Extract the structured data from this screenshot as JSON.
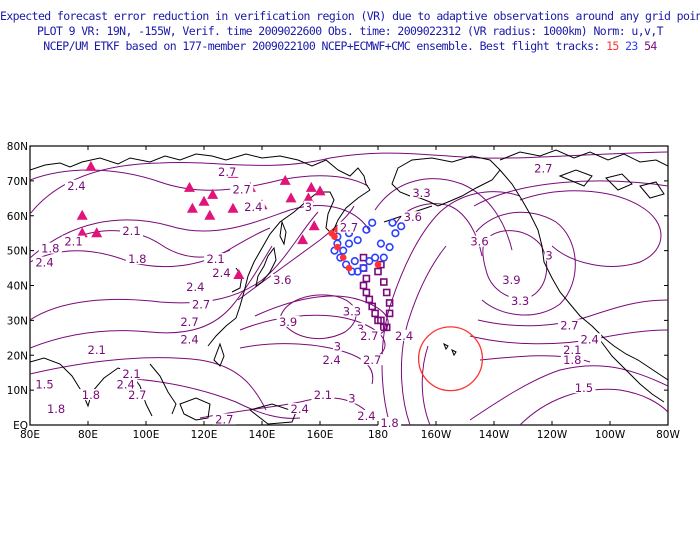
{
  "header": {
    "line1": "Expected forecast error reduction in verification region (VR) due to adaptive observations around any grid point.",
    "line2": "PLOT 9 VR: 19N, -155W, Verif. time 2009022600 Obs. time: 2009022312 (VR radius: 1000km) Norm: u,v,T",
    "line3": "NCEP/UM ETKF based on 177-member 2009022100 NCEP+ECMWF+CMC ensemble. Best flight tracks: ",
    "track_red": "15",
    "track_blue": "23",
    "track_purple": "54"
  },
  "colors": {
    "header_text": "#1a1aa8",
    "contour": "#7a0a7a",
    "coast": "#000000",
    "track_red": "#ff3333",
    "track_blue": "#2a40ff",
    "track_purple": "#7a0a7a",
    "verification_circle": "#ff3333",
    "marker": "#e0147a"
  },
  "axes": {
    "x_ticks": [
      "80E",
      "80E",
      "100E",
      "120E",
      "140E",
      "160E",
      "180",
      "160W",
      "140W",
      "120W",
      "100W",
      "80W"
    ],
    "y_ticks": [
      "EQ",
      "10N",
      "20N",
      "30N",
      "40N",
      "50N",
      "60N",
      "70N",
      "80N"
    ]
  },
  "contour_labels": [
    {
      "text": "2.7",
      "lon": 237,
      "lat": 73
    },
    {
      "text": "2.4",
      "lon": 76,
      "lat": 68
    },
    {
      "text": "2.7",
      "lon": 128,
      "lat": 72
    },
    {
      "text": "2.7",
      "lon": 133,
      "lat": 67
    },
    {
      "text": "2.4",
      "lon": 137,
      "lat": 62
    },
    {
      "text": "3",
      "lon": 156,
      "lat": 62
    },
    {
      "text": "2.1",
      "lon": 95,
      "lat": 55
    },
    {
      "text": "1.8",
      "lon": 67,
      "lat": 50
    },
    {
      "text": "2.1",
      "lon": 75,
      "lat": 52
    },
    {
      "text": "2.4",
      "lon": 65,
      "lat": 46
    },
    {
      "text": "1.8",
      "lon": 97,
      "lat": 47
    },
    {
      "text": "2.1",
      "lon": 124,
      "lat": 47
    },
    {
      "text": "2.4",
      "lon": 126,
      "lat": 43
    },
    {
      "text": "2.7",
      "lon": 170,
      "lat": 56
    },
    {
      "text": "3.3",
      "lon": 195,
      "lat": 66
    },
    {
      "text": "3.6",
      "lon": 192,
      "lat": 59
    },
    {
      "text": "3.6",
      "lon": 215,
      "lat": 52
    },
    {
      "text": "3",
      "lon": 239,
      "lat": 48
    },
    {
      "text": "3.9",
      "lon": 226,
      "lat": 41
    },
    {
      "text": "3.3",
      "lon": 229,
      "lat": 35
    },
    {
      "text": "3.6",
      "lon": 147,
      "lat": 41
    },
    {
      "text": "2.4",
      "lon": 117,
      "lat": 39
    },
    {
      "text": "2.7",
      "lon": 119,
      "lat": 34
    },
    {
      "text": "2.7",
      "lon": 115,
      "lat": 29
    },
    {
      "text": "3.9",
      "lon": 149,
      "lat": 29
    },
    {
      "text": "3.3",
      "lon": 171,
      "lat": 32
    },
    {
      "text": "3",
      "lon": 174,
      "lat": 27
    },
    {
      "text": "2.7",
      "lon": 177,
      "lat": 25
    },
    {
      "text": "2.4",
      "lon": 189,
      "lat": 25
    },
    {
      "text": "2.7",
      "lon": 246,
      "lat": 28
    },
    {
      "text": "2.4",
      "lon": 253,
      "lat": 24
    },
    {
      "text": "2.1",
      "lon": 247,
      "lat": 21
    },
    {
      "text": "1.8",
      "lon": 247,
      "lat": 18
    },
    {
      "text": "2.1",
      "lon": 83,
      "lat": 21
    },
    {
      "text": "2.4",
      "lon": 115,
      "lat": 24
    },
    {
      "text": "3",
      "lon": 166,
      "lat": 22
    },
    {
      "text": "2.4",
      "lon": 164,
      "lat": 18
    },
    {
      "text": "2.7",
      "lon": 178,
      "lat": 18
    },
    {
      "text": "1.5",
      "lon": 65,
      "lat": 11
    },
    {
      "text": "2.1",
      "lon": 95,
      "lat": 14
    },
    {
      "text": "2.4",
      "lon": 93,
      "lat": 11
    },
    {
      "text": "2.7",
      "lon": 97,
      "lat": 8
    },
    {
      "text": "1.8",
      "lon": 81,
      "lat": 8
    },
    {
      "text": "1.8",
      "lon": 69,
      "lat": 4
    },
    {
      "text": "2.1",
      "lon": 161,
      "lat": 8
    },
    {
      "text": "2.4",
      "lon": 153,
      "lat": 4
    },
    {
      "text": "2.7",
      "lon": 127,
      "lat": 1
    },
    {
      "text": "3",
      "lon": 171,
      "lat": 7
    },
    {
      "text": "2.4",
      "lon": 176,
      "lat": 2
    },
    {
      "text": "1.8",
      "lon": 184,
      "lat": 0
    },
    {
      "text": "1.5",
      "lon": 251,
      "lat": 10
    }
  ],
  "triangles": [
    [
      81,
      74
    ],
    [
      78,
      60
    ],
    [
      78,
      55
    ],
    [
      83,
      55
    ],
    [
      115,
      68
    ],
    [
      123,
      66
    ],
    [
      130,
      72
    ],
    [
      136,
      68
    ],
    [
      148,
      70
    ],
    [
      157,
      68
    ],
    [
      160,
      67
    ],
    [
      150,
      65
    ],
    [
      156,
      65
    ],
    [
      120,
      64
    ],
    [
      140,
      63
    ],
    [
      130,
      62
    ],
    [
      116,
      62
    ],
    [
      122,
      60
    ],
    [
      158,
      57
    ],
    [
      132,
      43
    ],
    [
      154,
      53
    ]
  ],
  "track_red_points": [
    [
      164,
      55
    ],
    [
      166,
      56
    ],
    [
      165,
      54
    ],
    [
      166,
      51
    ],
    [
      168,
      48
    ],
    [
      170,
      45
    ],
    [
      180,
      46
    ]
  ],
  "track_blue_points": [
    [
      173,
      53
    ],
    [
      170,
      52
    ],
    [
      168,
      50
    ],
    [
      167,
      48
    ],
    [
      169,
      46
    ],
    [
      171,
      44
    ],
    [
      173,
      44
    ],
    [
      175,
      45
    ],
    [
      177,
      47
    ],
    [
      179,
      48
    ],
    [
      182,
      48
    ],
    [
      184,
      51
    ],
    [
      186,
      55
    ],
    [
      188,
      57
    ],
    [
      185,
      58
    ],
    [
      178,
      58
    ],
    [
      176,
      56
    ],
    [
      170,
      55
    ],
    [
      166,
      54
    ],
    [
      166,
      52
    ],
    [
      165,
      50
    ],
    [
      172,
      47
    ],
    [
      181,
      52
    ]
  ],
  "track_purple_points": [
    [
      175,
      48
    ],
    [
      175,
      45
    ],
    [
      176,
      42
    ],
    [
      175,
      40
    ],
    [
      176,
      38
    ],
    [
      177,
      36
    ],
    [
      178,
      34
    ],
    [
      179,
      32
    ],
    [
      180,
      30
    ],
    [
      182,
      28
    ],
    [
      183,
      28
    ],
    [
      181,
      30
    ],
    [
      184,
      32
    ],
    [
      184,
      35
    ],
    [
      183,
      38
    ],
    [
      182,
      41
    ],
    [
      180,
      44
    ],
    [
      181,
      46
    ]
  ],
  "verification_region": {
    "lon": 205,
    "lat": 19,
    "radius_deg": 11
  }
}
